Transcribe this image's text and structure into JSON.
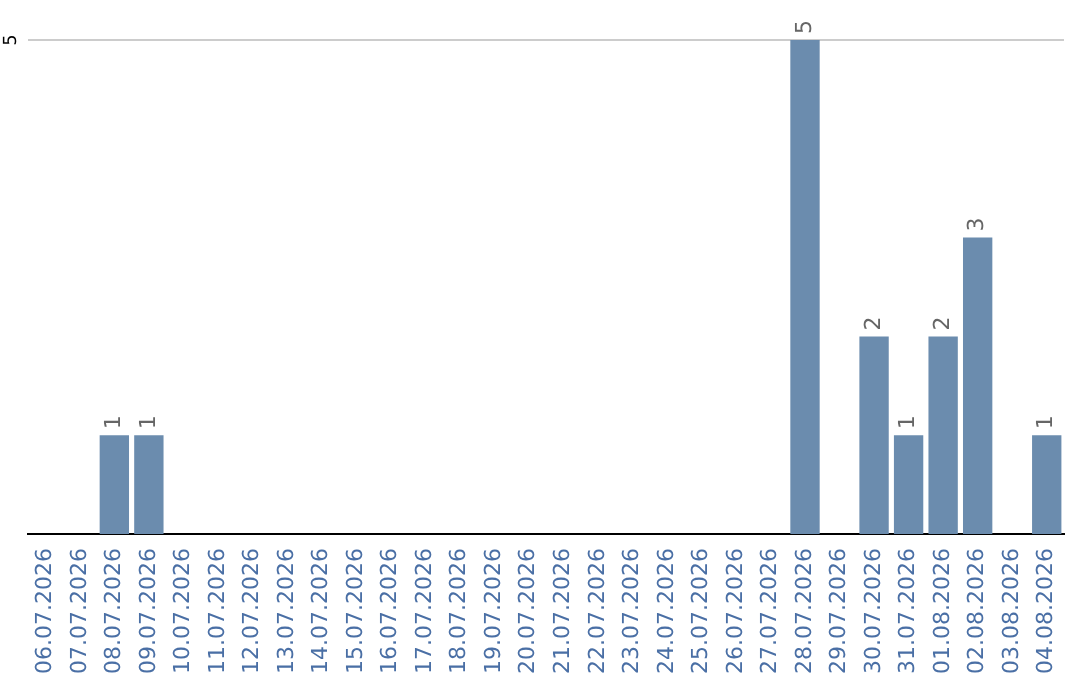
{
  "chart_data": {
    "type": "bar",
    "ylim": [
      0,
      5
    ],
    "categories": [
      "06.07.2026",
      "07.07.2026",
      "08.07.2026",
      "09.07.2026",
      "10.07.2026",
      "11.07.2026",
      "12.07.2026",
      "13.07.2026",
      "14.07.2026",
      "15.07.2026",
      "16.07.2026",
      "17.07.2026",
      "18.07.2026",
      "19.07.2026",
      "20.07.2026",
      "21.07.2026",
      "22.07.2026",
      "23.07.2026",
      "24.07.2026",
      "25.07.2026",
      "26.07.2026",
      "27.07.2026",
      "28.07.2026",
      "29.07.2026",
      "30.07.2026",
      "31.07.2026",
      "01.08.2026",
      "02.08.2026",
      "03.08.2026",
      "04.08.2026"
    ],
    "values": [
      0,
      0,
      1,
      1,
      0,
      0,
      0,
      0,
      0,
      0,
      0,
      0,
      0,
      0,
      0,
      0,
      0,
      0,
      0,
      0,
      0,
      0,
      5,
      0,
      2,
      1,
      2,
      3,
      0,
      1
    ],
    "value_labels": [
      null,
      null,
      "1",
      "1",
      null,
      null,
      null,
      null,
      null,
      null,
      null,
      null,
      null,
      null,
      null,
      null,
      null,
      null,
      null,
      null,
      null,
      null,
      "5",
      null,
      "2",
      "1",
      "2",
      "3",
      null,
      "1"
    ],
    "color": "#6b8cae",
    "ref_lines": [
      {
        "axis": "y",
        "value": 5,
        "label": "5",
        "color": "#cccccc"
      }
    ]
  }
}
